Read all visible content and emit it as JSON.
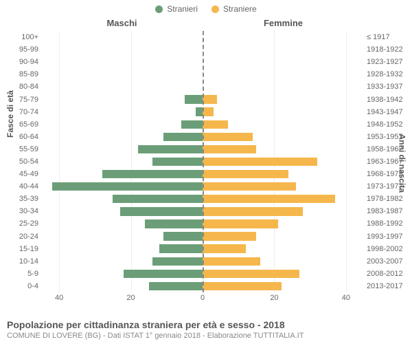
{
  "type": "population_pyramid",
  "legend": {
    "male": "Stranieri",
    "female": "Straniere"
  },
  "side_labels": {
    "left": "Maschi",
    "right": "Femmine"
  },
  "axis_titles": {
    "left": "Fasce di età",
    "right": "Anni di nascita"
  },
  "colors": {
    "male": "#6b9e78",
    "female": "#f5b74c",
    "background": "#ffffff",
    "grid": "#eeeeee",
    "center_line": "#888888",
    "text": "#666666"
  },
  "x_axis": {
    "max": 45,
    "ticks": [
      40,
      20,
      0,
      20,
      40
    ]
  },
  "footer": {
    "title": "Popolazione per cittadinanza straniera per età e sesso - 2018",
    "subtitle": "COMUNE DI LOVERE (BG) - Dati ISTAT 1° gennaio 2018 - Elaborazione TUTTITALIA.IT"
  },
  "rows": [
    {
      "age": "100+",
      "year": "≤ 1917",
      "m": 0,
      "f": 0
    },
    {
      "age": "95-99",
      "year": "1918-1922",
      "m": 0,
      "f": 0
    },
    {
      "age": "90-94",
      "year": "1923-1927",
      "m": 0,
      "f": 0
    },
    {
      "age": "85-89",
      "year": "1928-1932",
      "m": 0,
      "f": 0
    },
    {
      "age": "80-84",
      "year": "1933-1937",
      "m": 0,
      "f": 0
    },
    {
      "age": "75-79",
      "year": "1938-1942",
      "m": 5,
      "f": 4
    },
    {
      "age": "70-74",
      "year": "1943-1947",
      "m": 2,
      "f": 3
    },
    {
      "age": "65-69",
      "year": "1948-1952",
      "m": 6,
      "f": 7
    },
    {
      "age": "60-64",
      "year": "1953-1957",
      "m": 11,
      "f": 14
    },
    {
      "age": "55-59",
      "year": "1958-1962",
      "m": 18,
      "f": 15
    },
    {
      "age": "50-54",
      "year": "1963-1967",
      "m": 14,
      "f": 32
    },
    {
      "age": "45-49",
      "year": "1968-1972",
      "m": 28,
      "f": 24
    },
    {
      "age": "40-44",
      "year": "1973-1977",
      "m": 42,
      "f": 26
    },
    {
      "age": "35-39",
      "year": "1978-1982",
      "m": 25,
      "f": 37
    },
    {
      "age": "30-34",
      "year": "1983-1987",
      "m": 23,
      "f": 28
    },
    {
      "age": "25-29",
      "year": "1988-1992",
      "m": 16,
      "f": 21
    },
    {
      "age": "20-24",
      "year": "1993-1997",
      "m": 11,
      "f": 15
    },
    {
      "age": "15-19",
      "year": "1998-2002",
      "m": 12,
      "f": 12
    },
    {
      "age": "10-14",
      "year": "2003-2007",
      "m": 14,
      "f": 16
    },
    {
      "age": "5-9",
      "year": "2008-2012",
      "m": 22,
      "f": 27
    },
    {
      "age": "0-4",
      "year": "2013-2017",
      "m": 15,
      "f": 22
    }
  ],
  "style": {
    "bar_height_pct": 68,
    "label_fontsize": 11,
    "legend_fontsize": 12,
    "title_fontsize": 14
  }
}
